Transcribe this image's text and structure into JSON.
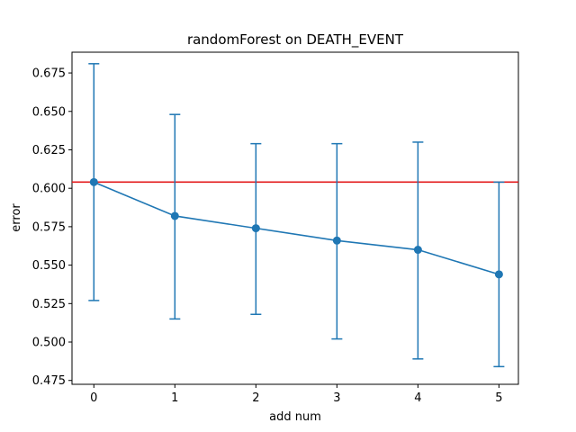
{
  "chart_data": {
    "type": "line",
    "title": "randomForest on DEATH_EVENT",
    "xlabel": "add num",
    "ylabel": "error",
    "x": [
      0,
      1,
      2,
      3,
      4,
      5
    ],
    "xticks": [
      "0",
      "1",
      "2",
      "3",
      "4",
      "5"
    ],
    "yticks": [
      "0.475",
      "0.500",
      "0.525",
      "0.550",
      "0.575",
      "0.600",
      "0.625",
      "0.650",
      "0.675"
    ],
    "ytick_values": [
      0.475,
      0.5,
      0.525,
      0.55,
      0.575,
      0.6,
      0.625,
      0.65,
      0.675
    ],
    "xlim": [
      -0.27,
      5.24
    ],
    "ylim": [
      0.4725,
      0.6885
    ],
    "series": [
      {
        "name": "error",
        "values": [
          0.604,
          0.582,
          0.574,
          0.566,
          0.56,
          0.544
        ],
        "err_low": [
          0.527,
          0.515,
          0.518,
          0.502,
          0.489,
          0.484
        ],
        "err_high": [
          0.681,
          0.648,
          0.629,
          0.629,
          0.63,
          0.604
        ],
        "color": "#1f77b4"
      }
    ],
    "baseline": {
      "value": 0.604,
      "color": "#e31a1c"
    },
    "grid": false,
    "legend": false
  }
}
